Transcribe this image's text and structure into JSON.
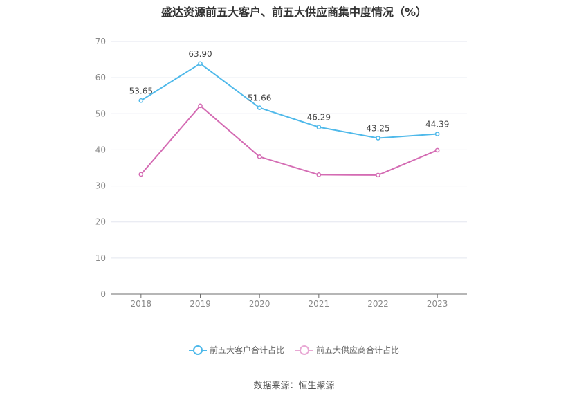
{
  "title": "盛达资源前五大客户、前五大供应商集中度情况（%）",
  "source": "数据来源：恒生聚源",
  "chart_data": {
    "type": "line",
    "title": "盛达资源前五大客户、前五大供应商集中度情况（%）",
    "categories": [
      "2018",
      "2019",
      "2020",
      "2021",
      "2022",
      "2023"
    ],
    "ylim": [
      0,
      70
    ],
    "yticks": [
      0,
      10,
      20,
      30,
      40,
      50,
      60,
      70
    ],
    "grid": true,
    "legend_position": "bottom",
    "series": [
      {
        "name": "前五大客户合计占比",
        "color": "#4fb9ea",
        "values": [
          53.65,
          63.9,
          51.66,
          46.29,
          43.25,
          44.39
        ],
        "labels": [
          "53.65",
          "63.90",
          "51.66",
          "46.29",
          "43.25",
          "44.39"
        ]
      },
      {
        "name": "前五大供应商合计占比",
        "color": "#d46bb3",
        "values": [
          33.2,
          52.2,
          38.1,
          33.1,
          33.0,
          39.9
        ]
      }
    ]
  }
}
